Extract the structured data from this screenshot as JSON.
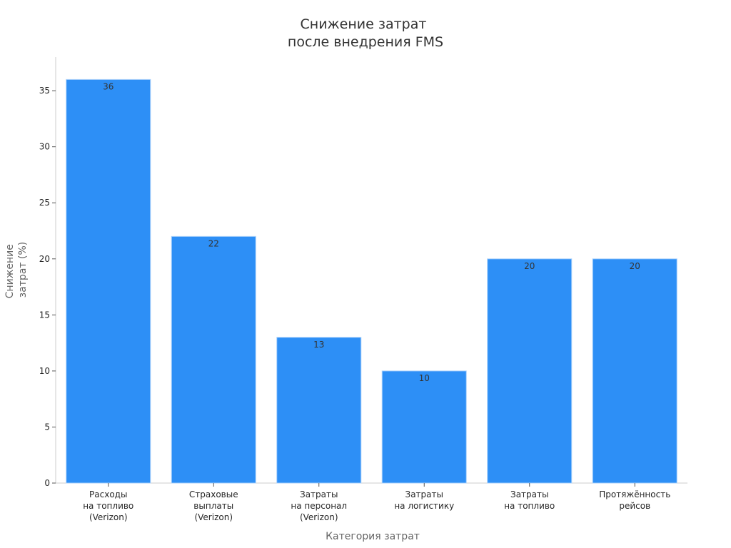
{
  "chart_data": {
    "type": "bar",
    "title": [
      "Снижение затрат",
      "после внедрения FMS"
    ],
    "xlabel": "Категория затрат",
    "ylabel": [
      "Снижение",
      "затрат (%)"
    ],
    "categories": [
      [
        "Расходы",
        "на топливо",
        "(Verizon)"
      ],
      [
        "Страховые",
        "выплаты",
        "(Verizon)"
      ],
      [
        "Затраты",
        "на персонал",
        "(Verizon)"
      ],
      [
        "Затраты",
        "на логистику"
      ],
      [
        "Затраты",
        "на топливо"
      ],
      [
        "Протяжённость",
        "рейсов"
      ]
    ],
    "values": [
      36,
      22,
      13,
      10,
      20,
      20
    ],
    "data_labels": [
      "36",
      "22",
      "13",
      "10",
      "20",
      "20"
    ],
    "ylim": [
      0,
      38
    ],
    "yticks": [
      0,
      5,
      10,
      15,
      20,
      25,
      30,
      35
    ],
    "grid": false,
    "bar_color": "#2d8ff6",
    "bar_edge_color": "#a8d0fb"
  }
}
